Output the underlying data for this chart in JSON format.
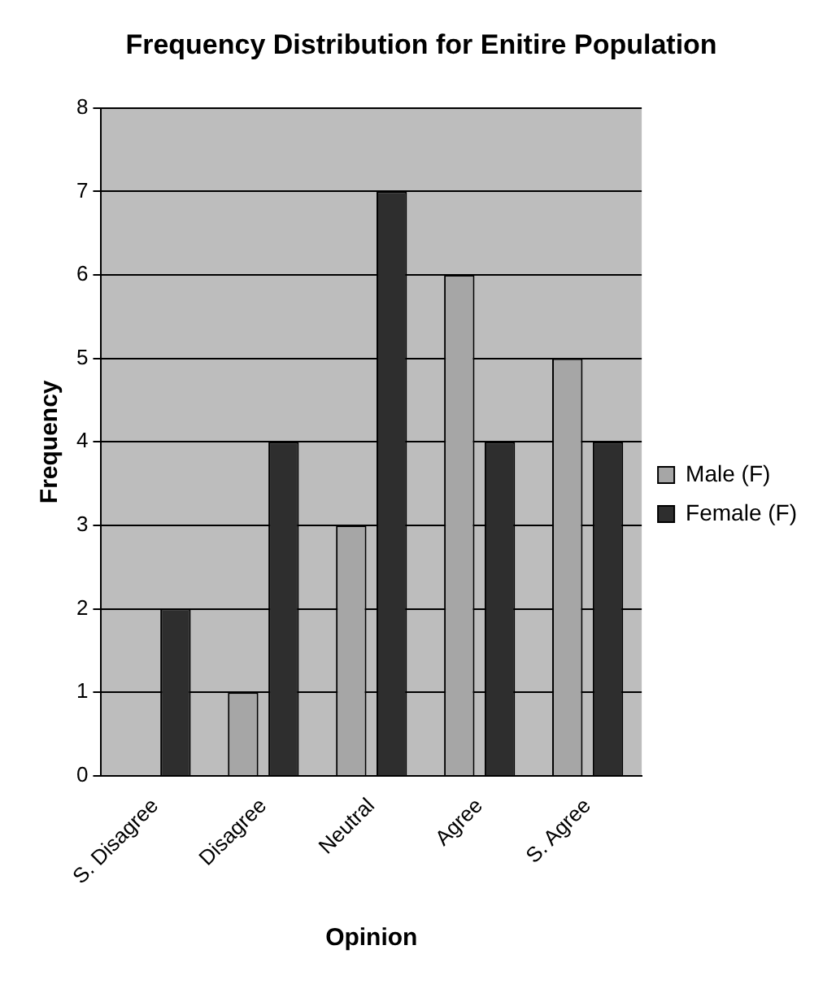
{
  "chart_data": {
    "type": "bar",
    "title": "Frequency Distribution for Enitire Population",
    "xlabel": "Opinion",
    "ylabel": "Frequency",
    "categories": [
      "S. Disagree",
      "Disagree",
      "Neutral",
      "Agree",
      "S. Agree"
    ],
    "series": [
      {
        "name": "Male (F)",
        "color": "#a6a6a6",
        "values": [
          0,
          1,
          3,
          6,
          5
        ]
      },
      {
        "name": "Female (F)",
        "color": "#2e2e2e",
        "values": [
          2,
          4,
          7,
          4,
          4
        ]
      }
    ],
    "ylim": [
      0,
      8
    ],
    "yticks": [
      0,
      1,
      2,
      3,
      4,
      5,
      6,
      7,
      8
    ],
    "grid": "y",
    "legend": "right"
  }
}
